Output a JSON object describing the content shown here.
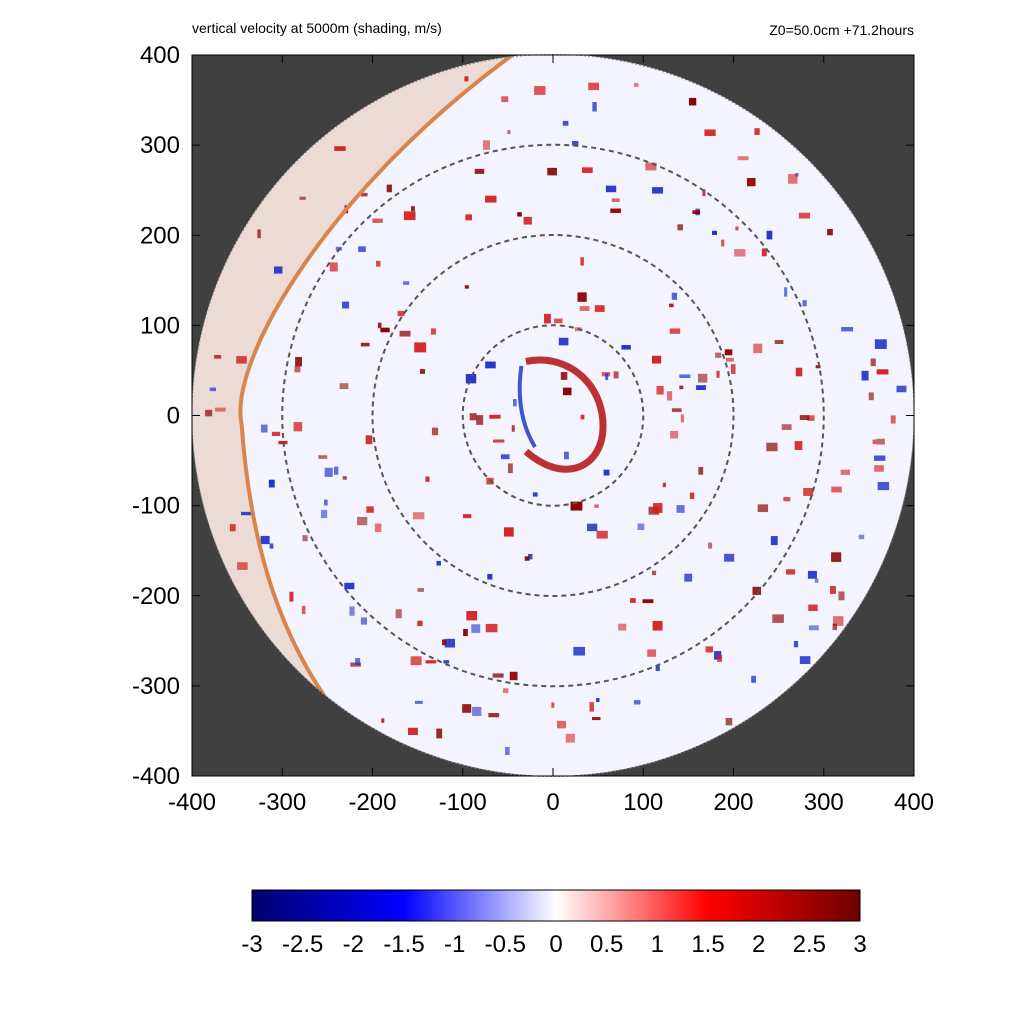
{
  "header": {
    "title_left": "vertical velocity at 5000m (shading, m/s)",
    "title_right": "Z0=50.0cm  +71.2hours"
  },
  "chart_data": {
    "type": "heatmap",
    "field": "vertical velocity at 5000m",
    "units": "m/s",
    "xlim": [
      -400,
      400
    ],
    "ylim": [
      -400,
      400
    ],
    "x_ticks": [
      "-400",
      "-300",
      "-200",
      "-100",
      "0",
      "100",
      "200",
      "300",
      "400"
    ],
    "y_ticks": [
      "400",
      "300",
      "200",
      "100",
      "0",
      "-100",
      "-200",
      "-300",
      "-400"
    ],
    "domain_radius": 400,
    "range_rings": [
      100,
      200,
      300
    ],
    "colorbar": {
      "min": -3,
      "max": 3,
      "ticks": [
        "-3",
        "-2.5",
        "-2",
        "-1.5",
        "-1",
        "-0.5",
        "0",
        "0.5",
        "1",
        "1.5",
        "2",
        "2.5",
        "3"
      ],
      "colors": [
        "#00006e",
        "#0000ff",
        "#ffffff",
        "#ff0000",
        "#6e0000"
      ]
    },
    "colors": {
      "background_outside_domain": "#404040",
      "boundary_line": "#d8844a",
      "shaded_region": "#ead6cc",
      "ring_color": "#555555"
    }
  }
}
